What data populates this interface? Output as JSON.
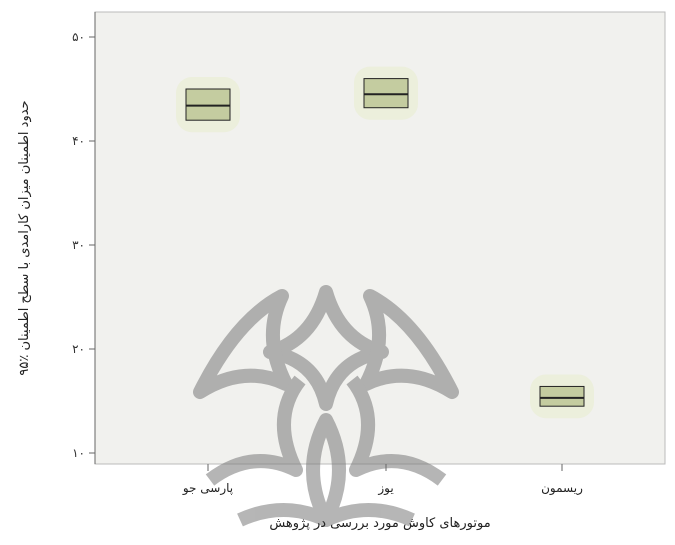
{
  "chart_data": {
    "type": "box",
    "title": "",
    "xlabel": "موتورهای کاوش مورد بررسی در پژوهش",
    "ylabel": "حدود اطمینان میزان کارامدی با سطح اطمینان ٪۹۵",
    "categories": [
      "پارسی جو",
      "یوز",
      "ریسمون"
    ],
    "yticks": [
      {
        "value": 10,
        "label": "۱۰"
      },
      {
        "value": 20,
        "label": "۲۰"
      },
      {
        "value": 30,
        "label": "۳۰"
      },
      {
        "value": 40,
        "label": "۴۰"
      },
      {
        "value": 50,
        "label": "۵۰"
      }
    ],
    "ylim": [
      9.5,
      50.5
    ],
    "series": [
      {
        "values": [
          {
            "low": 42.0,
            "mean": 43.4,
            "high": 45.0
          },
          {
            "low": 43.2,
            "mean": 44.5,
            "high": 46.0
          },
          {
            "low": 14.5,
            "mean": 15.3,
            "high": 16.4
          }
        ]
      }
    ],
    "grid": false,
    "legend": "none",
    "colors": {
      "plot_bg": "#f1f1ee",
      "box_fill": "#c4cca0",
      "box_stroke": "#222222",
      "halo": "#e8edc9",
      "axis": "#666666",
      "watermark": "#7a7a7a"
    }
  }
}
